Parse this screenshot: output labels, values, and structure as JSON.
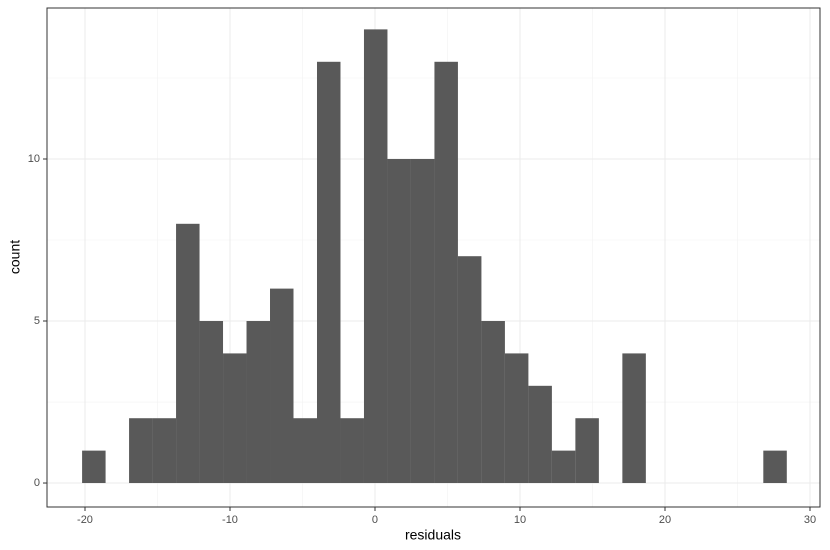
{
  "chart_data": {
    "type": "histogram",
    "x_label": "residuals",
    "y_label": "count",
    "bins": [
      -20.2,
      -18.58,
      -16.96,
      -15.34,
      -13.72,
      -12.1,
      -10.48,
      -8.86,
      -7.24,
      -5.62,
      -4.0,
      -2.38,
      -0.76,
      0.86,
      2.48,
      4.1,
      5.72,
      7.34,
      8.96,
      10.58,
      12.2,
      13.82,
      15.44,
      17.06,
      18.68,
      20.3,
      21.92,
      23.54,
      25.16,
      26.78,
      28.4
    ],
    "values": [
      1,
      0,
      2,
      2,
      8,
      5,
      4,
      5,
      6,
      2,
      13,
      2,
      14,
      10,
      10,
      13,
      7,
      5,
      4,
      3,
      1,
      2,
      0,
      4,
      0,
      0,
      0,
      0,
      0,
      1
    ],
    "color": "#595959",
    "xlim": [
      -22.62,
      30.69
    ],
    "xticks": [
      -20,
      -10,
      0,
      10,
      20,
      30
    ],
    "ylim": [
      -0.74,
      14.66
    ],
    "yticks": [
      0,
      5,
      10
    ],
    "grid": true,
    "minor_grid": true
  }
}
